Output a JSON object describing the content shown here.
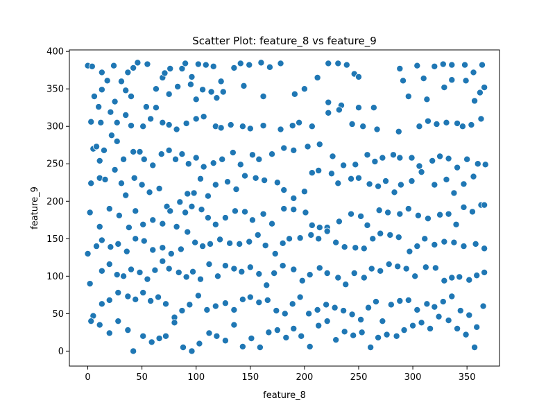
{
  "chart_data": {
    "type": "scatter",
    "title": "Scatter Plot: feature_8 vs feature_9",
    "xlabel": "feature_8",
    "ylabel": "feature_9",
    "xlim": [
      -17,
      380
    ],
    "ylim": [
      -20,
      402
    ],
    "xticks": [
      0,
      50,
      100,
      150,
      200,
      250,
      300,
      350
    ],
    "yticks": [
      0,
      50,
      100,
      150,
      200,
      250,
      300,
      350,
      400
    ],
    "grid": false,
    "marker_color": "#1f77b4",
    "marker_edge": "#ffffff",
    "points": [
      [
        0,
        381
      ],
      [
        4,
        380
      ],
      [
        13,
        372
      ],
      [
        24,
        381
      ],
      [
        37,
        372
      ],
      [
        42,
        378
      ],
      [
        46,
        385
      ],
      [
        55,
        383
      ],
      [
        63,
        350
      ],
      [
        69,
        365
      ],
      [
        71,
        371
      ],
      [
        76,
        377
      ],
      [
        87,
        377
      ],
      [
        90,
        384
      ],
      [
        96,
        366
      ],
      [
        102,
        383
      ],
      [
        109,
        382
      ],
      [
        116,
        380
      ],
      [
        123,
        360
      ],
      [
        135,
        378
      ],
      [
        141,
        384
      ],
      [
        149,
        382
      ],
      [
        160,
        385
      ],
      [
        168,
        379
      ],
      [
        178,
        384
      ],
      [
        212,
        365
      ],
      [
        222,
        384
      ],
      [
        231,
        384
      ],
      [
        239,
        382
      ],
      [
        246,
        370
      ],
      [
        250,
        366
      ],
      [
        288,
        377
      ],
      [
        304,
        381
      ],
      [
        310,
        364
      ],
      [
        320,
        380
      ],
      [
        328,
        383
      ],
      [
        336,
        382
      ],
      [
        348,
        382
      ],
      [
        356,
        372
      ],
      [
        364,
        382
      ],
      [
        6,
        340
      ],
      [
        10,
        326
      ],
      [
        13,
        349
      ],
      [
        18,
        361
      ],
      [
        25,
        333
      ],
      [
        31,
        360
      ],
      [
        35,
        348
      ],
      [
        40,
        340
      ],
      [
        54,
        326
      ],
      [
        63,
        325
      ],
      [
        75,
        343
      ],
      [
        83,
        353
      ],
      [
        95,
        356
      ],
      [
        100,
        336
      ],
      [
        106,
        349
      ],
      [
        114,
        346
      ],
      [
        119,
        338
      ],
      [
        125,
        346
      ],
      [
        144,
        354
      ],
      [
        162,
        340
      ],
      [
        191,
        343
      ],
      [
        200,
        350
      ],
      [
        222,
        332
      ],
      [
        234,
        328
      ],
      [
        250,
        325
      ],
      [
        264,
        325
      ],
      [
        291,
        361
      ],
      [
        296,
        340
      ],
      [
        313,
        336
      ],
      [
        329,
        352
      ],
      [
        336,
        362
      ],
      [
        349,
        361
      ],
      [
        357,
        334
      ],
      [
        362,
        345
      ],
      [
        366,
        352
      ],
      [
        3,
        306
      ],
      [
        12,
        305
      ],
      [
        21,
        319
      ],
      [
        27,
        305
      ],
      [
        35,
        315
      ],
      [
        40,
        301
      ],
      [
        51,
        300
      ],
      [
        58,
        310
      ],
      [
        69,
        305
      ],
      [
        75,
        302
      ],
      [
        82,
        296
      ],
      [
        91,
        304
      ],
      [
        100,
        310
      ],
      [
        107,
        313
      ],
      [
        118,
        300
      ],
      [
        123,
        298
      ],
      [
        132,
        302
      ],
      [
        143,
        300
      ],
      [
        150,
        297
      ],
      [
        162,
        301
      ],
      [
        178,
        296
      ],
      [
        189,
        301
      ],
      [
        195,
        305
      ],
      [
        207,
        300
      ],
      [
        222,
        318
      ],
      [
        232,
        322
      ],
      [
        244,
        303
      ],
      [
        254,
        300
      ],
      [
        267,
        296
      ],
      [
        287,
        293
      ],
      [
        306,
        300
      ],
      [
        314,
        307
      ],
      [
        322,
        303
      ],
      [
        331,
        305
      ],
      [
        341,
        304
      ],
      [
        346,
        300
      ],
      [
        354,
        302
      ],
      [
        363,
        310
      ],
      [
        5,
        270
      ],
      [
        8,
        273
      ],
      [
        11,
        254
      ],
      [
        15,
        268
      ],
      [
        22,
        288
      ],
      [
        27,
        280
      ],
      [
        33,
        256
      ],
      [
        42,
        266
      ],
      [
        48,
        266
      ],
      [
        52,
        256
      ],
      [
        60,
        248
      ],
      [
        68,
        263
      ],
      [
        75,
        268
      ],
      [
        81,
        256
      ],
      [
        87,
        263
      ],
      [
        93,
        250
      ],
      [
        100,
        258
      ],
      [
        107,
        246
      ],
      [
        116,
        251
      ],
      [
        124,
        256
      ],
      [
        134,
        265
      ],
      [
        141,
        249
      ],
      [
        152,
        262
      ],
      [
        158,
        256
      ],
      [
        170,
        263
      ],
      [
        181,
        271
      ],
      [
        190,
        268
      ],
      [
        203,
        273
      ],
      [
        214,
        276
      ],
      [
        226,
        260
      ],
      [
        236,
        248
      ],
      [
        247,
        249
      ],
      [
        258,
        262
      ],
      [
        265,
        253
      ],
      [
        272,
        258
      ],
      [
        282,
        262
      ],
      [
        288,
        258
      ],
      [
        299,
        258
      ],
      [
        306,
        247
      ],
      [
        318,
        254
      ],
      [
        325,
        260
      ],
      [
        333,
        257
      ],
      [
        341,
        245
      ],
      [
        350,
        256
      ],
      [
        360,
        250
      ],
      [
        367,
        249
      ],
      [
        3,
        224
      ],
      [
        11,
        231
      ],
      [
        16,
        229
      ],
      [
        25,
        242
      ],
      [
        31,
        224
      ],
      [
        35,
        208
      ],
      [
        43,
        231
      ],
      [
        50,
        222
      ],
      [
        57,
        212
      ],
      [
        66,
        217
      ],
      [
        73,
        193
      ],
      [
        85,
        199
      ],
      [
        92,
        210
      ],
      [
        98,
        211
      ],
      [
        104,
        230
      ],
      [
        111,
        207
      ],
      [
        118,
        222
      ],
      [
        129,
        226
      ],
      [
        137,
        216
      ],
      [
        145,
        234
      ],
      [
        155,
        231
      ],
      [
        163,
        228
      ],
      [
        175,
        225
      ],
      [
        181,
        215
      ],
      [
        190,
        204
      ],
      [
        200,
        213
      ],
      [
        207,
        238
      ],
      [
        213,
        241
      ],
      [
        225,
        237
      ],
      [
        231,
        224
      ],
      [
        243,
        230
      ],
      [
        250,
        231
      ],
      [
        260,
        223
      ],
      [
        268,
        220
      ],
      [
        275,
        227
      ],
      [
        283,
        212
      ],
      [
        289,
        222
      ],
      [
        299,
        227
      ],
      [
        308,
        239
      ],
      [
        320,
        222
      ],
      [
        331,
        229
      ],
      [
        338,
        211
      ],
      [
        347,
        223
      ],
      [
        356,
        233
      ],
      [
        363,
        195
      ],
      [
        2,
        185
      ],
      [
        11,
        166
      ],
      [
        20,
        190
      ],
      [
        29,
        181
      ],
      [
        38,
        165
      ],
      [
        44,
        187
      ],
      [
        51,
        169
      ],
      [
        60,
        175
      ],
      [
        69,
        170
      ],
      [
        76,
        187
      ],
      [
        82,
        166
      ],
      [
        90,
        185
      ],
      [
        96,
        193
      ],
      [
        105,
        189
      ],
      [
        111,
        178
      ],
      [
        118,
        169
      ],
      [
        127,
        178
      ],
      [
        136,
        187
      ],
      [
        145,
        186
      ],
      [
        152,
        175
      ],
      [
        162,
        183
      ],
      [
        170,
        170
      ],
      [
        181,
        190
      ],
      [
        190,
        189
      ],
      [
        201,
        185
      ],
      [
        207,
        168
      ],
      [
        214,
        165
      ],
      [
        221,
        165
      ],
      [
        232,
        173
      ],
      [
        243,
        183
      ],
      [
        252,
        180
      ],
      [
        258,
        168
      ],
      [
        269,
        188
      ],
      [
        277,
        185
      ],
      [
        288,
        183
      ],
      [
        296,
        190
      ],
      [
        305,
        181
      ],
      [
        314,
        177
      ],
      [
        325,
        182
      ],
      [
        333,
        183
      ],
      [
        340,
        169
      ],
      [
        347,
        192
      ],
      [
        355,
        186
      ],
      [
        366,
        195
      ],
      [
        0,
        130
      ],
      [
        8,
        140
      ],
      [
        13,
        148
      ],
      [
        21,
        139
      ],
      [
        28,
        143
      ],
      [
        36,
        133
      ],
      [
        44,
        150
      ],
      [
        52,
        147
      ],
      [
        60,
        135
      ],
      [
        69,
        138
      ],
      [
        77,
        130
      ],
      [
        86,
        136
      ],
      [
        92,
        159
      ],
      [
        99,
        145
      ],
      [
        106,
        140
      ],
      [
        113,
        143
      ],
      [
        122,
        149
      ],
      [
        131,
        144
      ],
      [
        140,
        143
      ],
      [
        149,
        146
      ],
      [
        157,
        155
      ],
      [
        164,
        141
      ],
      [
        173,
        130
      ],
      [
        180,
        144
      ],
      [
        186,
        150
      ],
      [
        196,
        151
      ],
      [
        206,
        155
      ],
      [
        213,
        150
      ],
      [
        221,
        160
      ],
      [
        229,
        145
      ],
      [
        237,
        139
      ],
      [
        247,
        138
      ],
      [
        255,
        137
      ],
      [
        263,
        150
      ],
      [
        270,
        157
      ],
      [
        279,
        155
      ],
      [
        287,
        152
      ],
      [
        297,
        133
      ],
      [
        304,
        140
      ],
      [
        311,
        150
      ],
      [
        320,
        142
      ],
      [
        329,
        146
      ],
      [
        338,
        145
      ],
      [
        347,
        140
      ],
      [
        358,
        143
      ],
      [
        366,
        137
      ],
      [
        2,
        90
      ],
      [
        13,
        107
      ],
      [
        20,
        116
      ],
      [
        27,
        102
      ],
      [
        33,
        100
      ],
      [
        40,
        109
      ],
      [
        48,
        105
      ],
      [
        55,
        96
      ],
      [
        62,
        108
      ],
      [
        69,
        120
      ],
      [
        75,
        110
      ],
      [
        84,
        105
      ],
      [
        91,
        99
      ],
      [
        97,
        106
      ],
      [
        104,
        96
      ],
      [
        112,
        116
      ],
      [
        120,
        100
      ],
      [
        127,
        114
      ],
      [
        135,
        110
      ],
      [
        142,
        106
      ],
      [
        150,
        112
      ],
      [
        158,
        103
      ],
      [
        165,
        88
      ],
      [
        172,
        104
      ],
      [
        180,
        114
      ],
      [
        190,
        109
      ],
      [
        198,
        94
      ],
      [
        205,
        102
      ],
      [
        214,
        111
      ],
      [
        221,
        104
      ],
      [
        231,
        98
      ],
      [
        238,
        89
      ],
      [
        246,
        104
      ],
      [
        255,
        98
      ],
      [
        262,
        110
      ],
      [
        270,
        107
      ],
      [
        278,
        116
      ],
      [
        286,
        113
      ],
      [
        294,
        110
      ],
      [
        302,
        100
      ],
      [
        312,
        112
      ],
      [
        321,
        111
      ],
      [
        329,
        94
      ],
      [
        336,
        98
      ],
      [
        343,
        99
      ],
      [
        352,
        95
      ],
      [
        359,
        101
      ],
      [
        366,
        105
      ],
      [
        5,
        47
      ],
      [
        13,
        63
      ],
      [
        20,
        68
      ],
      [
        28,
        78
      ],
      [
        37,
        73
      ],
      [
        44,
        69
      ],
      [
        51,
        78
      ],
      [
        58,
        67
      ],
      [
        65,
        72
      ],
      [
        72,
        63
      ],
      [
        80,
        45
      ],
      [
        87,
        54
      ],
      [
        94,
        62
      ],
      [
        102,
        74
      ],
      [
        110,
        55
      ],
      [
        118,
        60
      ],
      [
        127,
        64
      ],
      [
        135,
        55
      ],
      [
        143,
        69
      ],
      [
        150,
        72
      ],
      [
        158,
        65
      ],
      [
        166,
        68
      ],
      [
        174,
        54
      ],
      [
        182,
        50
      ],
      [
        189,
        63
      ],
      [
        196,
        72
      ],
      [
        204,
        50
      ],
      [
        212,
        55
      ],
      [
        220,
        62
      ],
      [
        228,
        58
      ],
      [
        236,
        54
      ],
      [
        244,
        49
      ],
      [
        252,
        42
      ],
      [
        259,
        58
      ],
      [
        266,
        66
      ],
      [
        272,
        40
      ],
      [
        280,
        62
      ],
      [
        288,
        67
      ],
      [
        296,
        68
      ],
      [
        304,
        55
      ],
      [
        313,
        63
      ],
      [
        320,
        59
      ],
      [
        328,
        66
      ],
      [
        336,
        73
      ],
      [
        344,
        54
      ],
      [
        352,
        48
      ],
      [
        359,
        32
      ],
      [
        365,
        60
      ],
      [
        3,
        40
      ],
      [
        11,
        35
      ],
      [
        20,
        24
      ],
      [
        28,
        40
      ],
      [
        37,
        28
      ],
      [
        42,
        0
      ],
      [
        51,
        20
      ],
      [
        59,
        12
      ],
      [
        66,
        17
      ],
      [
        72,
        20
      ],
      [
        80,
        38
      ],
      [
        88,
        5
      ],
      [
        96,
        0
      ],
      [
        103,
        10
      ],
      [
        112,
        24
      ],
      [
        119,
        20
      ],
      [
        127,
        14
      ],
      [
        135,
        35
      ],
      [
        143,
        6
      ],
      [
        151,
        17
      ],
      [
        159,
        5
      ],
      [
        167,
        25
      ],
      [
        175,
        28
      ],
      [
        183,
        18
      ],
      [
        190,
        30
      ],
      [
        197,
        20
      ],
      [
        205,
        6
      ],
      [
        213,
        34
      ],
      [
        221,
        40
      ],
      [
        229,
        15
      ],
      [
        237,
        26
      ],
      [
        245,
        21
      ],
      [
        253,
        25
      ],
      [
        261,
        5
      ],
      [
        268,
        18
      ],
      [
        276,
        22
      ],
      [
        285,
        20
      ],
      [
        292,
        28
      ],
      [
        300,
        34
      ],
      [
        308,
        38
      ],
      [
        316,
        30
      ],
      [
        324,
        46
      ],
      [
        333,
        41
      ],
      [
        341,
        30
      ],
      [
        349,
        22
      ],
      [
        357,
        5
      ]
    ]
  }
}
